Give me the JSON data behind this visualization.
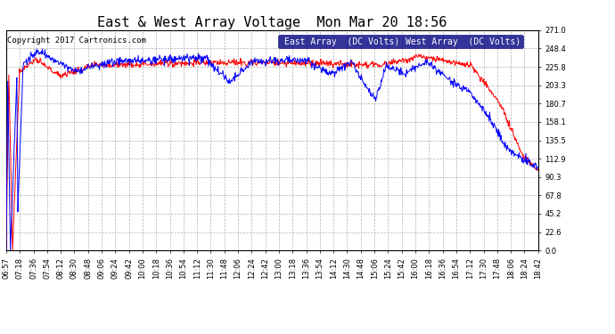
{
  "title": "East & West Array Voltage  Mon Mar 20 18:56",
  "copyright": "Copyright 2017 Cartronics.com",
  "legend_east": "East Array  (DC Volts)",
  "legend_west": "West Array  (DC Volts)",
  "east_color": "#0000ff",
  "west_color": "#ff0000",
  "background_color": "#ffffff",
  "plot_bg_color": "#ffffff",
  "grid_color": "#b0b0b0",
  "ylim": [
    0.0,
    271.0
  ],
  "yticks": [
    0.0,
    22.6,
    45.2,
    67.8,
    90.3,
    112.9,
    135.5,
    158.1,
    180.7,
    203.3,
    225.8,
    248.4,
    271.0
  ],
  "xtick_labels": [
    "06:57",
    "07:18",
    "07:36",
    "07:54",
    "08:12",
    "08:30",
    "08:48",
    "09:06",
    "09:24",
    "09:42",
    "10:00",
    "10:18",
    "10:36",
    "10:54",
    "11:12",
    "11:30",
    "11:48",
    "12:06",
    "12:24",
    "12:42",
    "13:00",
    "13:18",
    "13:36",
    "13:54",
    "14:12",
    "14:30",
    "14:48",
    "15:06",
    "15:24",
    "15:42",
    "16:00",
    "16:18",
    "16:36",
    "16:54",
    "17:12",
    "17:30",
    "17:48",
    "18:06",
    "18:24",
    "18:42"
  ],
  "title_fontsize": 11,
  "copyright_fontsize": 6.5,
  "tick_fontsize": 6,
  "legend_fontsize": 7,
  "line_width": 0.7
}
